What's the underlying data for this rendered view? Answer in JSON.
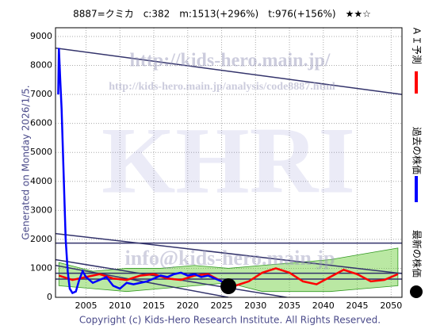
{
  "chart_data": {
    "type": "line",
    "title": "8887=クミカ　c:382　m:1513(+296%)　t:976(+156%)　★★☆",
    "side_note": "Generated on Monday 2026/1/5.",
    "footer": "Copyright (c) Kids-Hero Research Institute. All Rights Reserved.",
    "watermarks": [
      "http://kids-hero.main.jp/",
      "http://kids-hero.main.jp/analysis/code8887.html",
      "KHRI",
      "info@kids-hero.main.jp"
    ],
    "xlim": [
      2000.5,
      2051.6
    ],
    "ylim": [
      0,
      9300
    ],
    "xticks": [
      2005,
      2010,
      2015,
      2020,
      2025,
      2030,
      2035,
      2040,
      2045,
      2050
    ],
    "yticks": [
      0,
      1000,
      2000,
      3000,
      4000,
      5000,
      6000,
      7000,
      8000,
      9000
    ],
    "grid": true,
    "series": [
      {
        "name": "ＡＩ予測",
        "color": "#ff0000",
        "x": [
          2001,
          2003,
          2005,
          2007,
          2009,
          2011,
          2013,
          2015,
          2017,
          2019,
          2021,
          2023,
          2025,
          2027,
          2029,
          2031,
          2033,
          2035,
          2037,
          2039,
          2041,
          2043,
          2045,
          2047,
          2049,
          2051
        ],
        "values": [
          750,
          600,
          700,
          800,
          650,
          600,
          750,
          800,
          650,
          600,
          750,
          800,
          550,
          400,
          550,
          850,
          1000,
          850,
          550,
          450,
          700,
          950,
          800,
          550,
          600,
          800
        ]
      },
      {
        "name": "過去の株価",
        "color": "#0000ff",
        "x": [
          2000.9,
          2001,
          2001.2,
          2001.4,
          2001.6,
          2001.8,
          2002,
          2002.3,
          2002.6,
          2003,
          2003.5,
          2004,
          2004.5,
          2005,
          2006,
          2007,
          2008,
          2009,
          2010,
          2011,
          2012,
          2013,
          2014,
          2015,
          2016,
          2017,
          2018,
          2019,
          2020,
          2021,
          2022,
          2023,
          2024,
          2025,
          2025.5
        ],
        "values": [
          7000,
          8600,
          7500,
          6500,
          5000,
          3500,
          2000,
          900,
          300,
          150,
          200,
          600,
          900,
          700,
          500,
          600,
          700,
          400,
          300,
          500,
          450,
          500,
          550,
          650,
          750,
          700,
          800,
          850,
          750,
          800,
          700,
          750,
          650,
          550,
          450
        ]
      },
      {
        "name": "最新の株価",
        "color": "#000000",
        "x": [
          2026
        ],
        "values": [
          382
        ]
      }
    ],
    "green_band": {
      "color": "#66cc33",
      "x": [
        2001,
        2006,
        2011,
        2016,
        2021,
        2026,
        2031,
        2036,
        2041,
        2046,
        2051
      ],
      "upper": [
        1200,
        900,
        1000,
        1000,
        1100,
        1000,
        1100,
        1200,
        1300,
        1500,
        1700
      ],
      "lower": [
        400,
        300,
        200,
        300,
        400,
        500,
        200,
        200,
        200,
        300,
        400
      ]
    },
    "trend_lines": [
      {
        "color": "#33336b",
        "x": [
          2000.5,
          2051.6
        ],
        "values": [
          8600,
          7000
        ]
      },
      {
        "color": "#33336b",
        "x": [
          2000.5,
          2051.6
        ],
        "values": [
          2200,
          820
        ]
      },
      {
        "color": "#33336b",
        "x": [
          2000.5,
          2051.6
        ],
        "values": [
          1870,
          1870
        ]
      },
      {
        "color": "#33336b",
        "x": [
          2000.5,
          2051.6
        ],
        "values": [
          830,
          830
        ]
      },
      {
        "color": "#33336b",
        "x": [
          2000.5,
          2051.6
        ],
        "values": [
          630,
          630
        ]
      },
      {
        "color": "#33336b",
        "x": [
          2000.5,
          2038.5
        ],
        "values": [
          1300,
          -150
        ]
      },
      {
        "color": "#33336b",
        "x": [
          2000.5,
          2026
        ],
        "values": [
          1100,
          0
        ]
      }
    ]
  }
}
